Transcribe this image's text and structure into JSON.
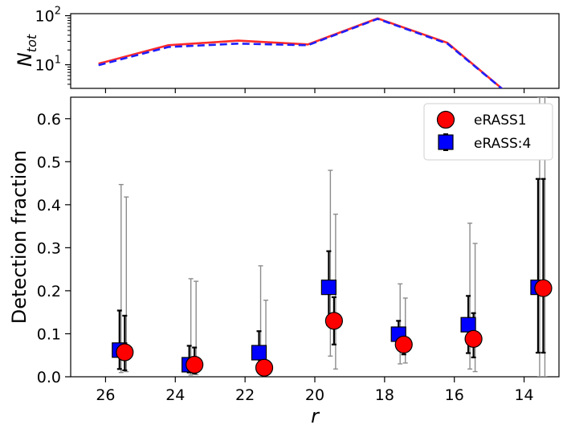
{
  "chart_data": [
    {
      "type": "line",
      "xlabel": "",
      "ylabel": "N_tot",
      "ylabel_main": "N",
      "ylabel_sub": "tot",
      "yscale": "log",
      "xlim": [
        27,
        13
      ],
      "ylim": [
        3.3,
        110
      ],
      "yticks": [
        {
          "value": 10,
          "base": "10",
          "exp": "1"
        },
        {
          "value": 100,
          "base": "10",
          "exp": "2"
        }
      ],
      "series": [
        {
          "color": "#ff2a2a",
          "style": "solid",
          "x": [
            26.2,
            24.2,
            22.2,
            20.2,
            18.2,
            16.2,
            14.2
          ],
          "y": [
            10.5,
            25,
            31,
            26,
            88,
            28,
            1.8
          ]
        },
        {
          "color": "#1f1fff",
          "style": "dashed",
          "x": [
            26.2,
            24.2,
            22.2,
            20.2,
            18.2,
            16.2,
            14.2
          ],
          "y": [
            9.8,
            23,
            27,
            25,
            86,
            27,
            1.8
          ]
        }
      ]
    },
    {
      "type": "scatter",
      "xlabel": "r",
      "ylabel": "Detection fraction",
      "xlim": [
        27,
        13
      ],
      "ylim": [
        0,
        0.65
      ],
      "xticks": [
        26,
        24,
        22,
        20,
        18,
        16,
        14
      ],
      "yticks": [
        0.0,
        0.1,
        0.2,
        0.3,
        0.4,
        0.5,
        0.6
      ],
      "ytick_labels": [
        "0.0",
        "0.1",
        "0.2",
        "0.3",
        "0.4",
        "0.5",
        "0.6"
      ],
      "legend_position": "top-right",
      "series": [
        {
          "name": "eRASS1",
          "marker": "circle",
          "color": "#ff0000",
          "points": [
            {
              "x": 25.45,
              "y": 0.057,
              "e1_lo": 0.015,
              "e1_hi": 0.142,
              "e2_lo": 0.012,
              "e2_hi": 0.418
            },
            {
              "x": 23.45,
              "y": 0.028,
              "e1_lo": 0.008,
              "e1_hi": 0.068,
              "e2_lo": 0.005,
              "e2_hi": 0.222
            },
            {
              "x": 21.45,
              "y": 0.021,
              "e1_lo": 0.015,
              "e1_hi": 0.026,
              "e2_lo": 0.01,
              "e2_hi": 0.178
            },
            {
              "x": 19.45,
              "y": 0.13,
              "e1_lo": 0.075,
              "e1_hi": 0.185,
              "e2_lo": 0.018,
              "e2_hi": 0.378
            },
            {
              "x": 17.45,
              "y": 0.075,
              "e1_lo": 0.052,
              "e1_hi": 0.095,
              "e2_lo": 0.032,
              "e2_hi": 0.183
            },
            {
              "x": 15.45,
              "y": 0.088,
              "e1_lo": 0.045,
              "e1_hi": 0.148,
              "e2_lo": 0.012,
              "e2_hi": 0.31
            },
            {
              "x": 13.45,
              "y": 0.206,
              "e1_lo": 0.056,
              "e1_hi": 0.46,
              "e2_lo": 0.0,
              "e2_hi": 0.65
            }
          ]
        },
        {
          "name": "eRASS:4",
          "marker": "square",
          "color": "#0000ff",
          "points": [
            {
              "x": 25.6,
              "y": 0.062,
              "e1_lo": 0.018,
              "e1_hi": 0.154,
              "e2_lo": 0.01,
              "e2_hi": 0.447
            },
            {
              "x": 23.6,
              "y": 0.028,
              "e1_lo": 0.01,
              "e1_hi": 0.072,
              "e2_lo": 0.004,
              "e2_hi": 0.228
            },
            {
              "x": 21.6,
              "y": 0.056,
              "e1_lo": 0.03,
              "e1_hi": 0.106,
              "e2_lo": 0.01,
              "e2_hi": 0.258
            },
            {
              "x": 19.6,
              "y": 0.208,
              "e1_lo": 0.12,
              "e1_hi": 0.292,
              "e2_lo": 0.048,
              "e2_hi": 0.48
            },
            {
              "x": 17.6,
              "y": 0.099,
              "e1_lo": 0.07,
              "e1_hi": 0.13,
              "e2_lo": 0.03,
              "e2_hi": 0.216
            },
            {
              "x": 15.6,
              "y": 0.121,
              "e1_lo": 0.055,
              "e1_hi": 0.188,
              "e2_lo": 0.018,
              "e2_hi": 0.357
            },
            {
              "x": 13.6,
              "y": 0.208,
              "e1_lo": 0.056,
              "e1_hi": 0.46,
              "e2_lo": 0.0,
              "e2_hi": 0.65
            }
          ]
        }
      ]
    }
  ]
}
